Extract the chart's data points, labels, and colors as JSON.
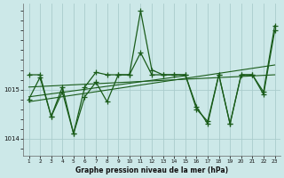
{
  "title": "Graphe pression niveau de la mer (hPa)",
  "bg_color": "#cce8e8",
  "grid_color": "#aacccc",
  "line_color": "#1a5c1a",
  "x_min": 1,
  "x_max": 23,
  "y_min": 1013.65,
  "y_max": 1016.75,
  "yticks": [
    1014,
    1015
  ],
  "xticks": [
    1,
    2,
    3,
    4,
    5,
    6,
    7,
    8,
    9,
    10,
    11,
    12,
    13,
    14,
    15,
    16,
    17,
    18,
    19,
    20,
    21,
    22,
    23
  ],
  "s1_x": [
    1,
    2,
    3,
    4,
    5,
    6,
    7,
    8,
    9,
    10,
    11,
    12,
    13,
    14,
    15,
    16,
    17,
    18,
    19,
    20,
    21,
    22,
    23
  ],
  "s1_y": [
    1015.3,
    1015.3,
    1014.45,
    1015.05,
    1014.1,
    1015.05,
    1015.35,
    1015.3,
    1015.3,
    1015.3,
    1016.6,
    1015.4,
    1015.3,
    1015.3,
    1015.3,
    1014.65,
    1014.3,
    1015.3,
    1014.3,
    1015.3,
    1015.3,
    1014.95,
    1016.3
  ],
  "s2_x": [
    1,
    2,
    3,
    4,
    5,
    6,
    7,
    8,
    9,
    10,
    11,
    12,
    13,
    14,
    15,
    16,
    17,
    18,
    19,
    20,
    21,
    22,
    23
  ],
  "s2_y": [
    1014.8,
    1015.25,
    1014.45,
    1014.95,
    1014.1,
    1014.85,
    1015.15,
    1014.75,
    1015.3,
    1015.3,
    1015.75,
    1015.3,
    1015.3,
    1015.3,
    1015.3,
    1014.6,
    1014.35,
    1015.3,
    1014.3,
    1015.3,
    1015.3,
    1014.9,
    1016.2
  ],
  "trend1_x": [
    1,
    23
  ],
  "trend1_y": [
    1014.75,
    1015.5
  ],
  "trend2_x": [
    1,
    23
  ],
  "trend2_y": [
    1015.05,
    1015.3
  ],
  "trend3_x": [
    1,
    15
  ],
  "trend3_y": [
    1014.85,
    1015.28
  ]
}
